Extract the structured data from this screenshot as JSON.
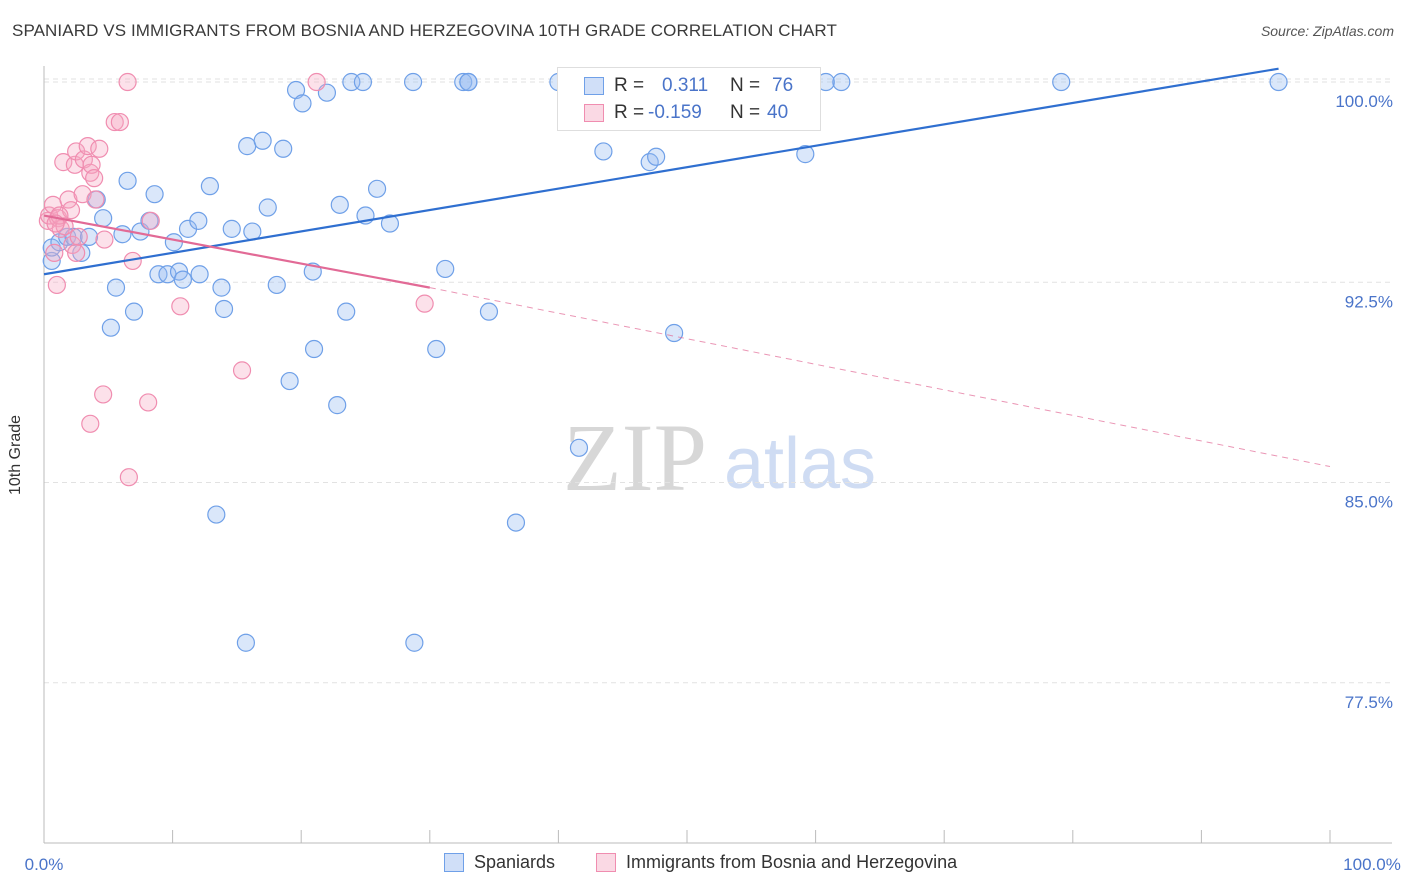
{
  "title": "SPANIARD VS IMMIGRANTS FROM BOSNIA AND HERZEGOVINA 10TH GRADE CORRELATION CHART",
  "source": "Source: ZipAtlas.com",
  "watermark": {
    "zip": "ZIP",
    "atlas": "atlas"
  },
  "legend_top": {
    "rows": [
      {
        "r_label": "R =",
        "r_value": "0.311",
        "n_label": "N =",
        "n_value": "76",
        "color": "#6fa0e8"
      },
      {
        "r_label": "R =",
        "r_value": "-0.159",
        "n_label": "N =",
        "n_value": "40",
        "color": "#f08db0"
      }
    ]
  },
  "chart_data": {
    "type": "scatter",
    "title": "SPANIARD VS IMMIGRANTS FROM BOSNIA AND HERZEGOVINA 10TH GRADE CORRELATION CHART",
    "xlabel": "",
    "ylabel": "10th Grade",
    "xlim": [
      0,
      100
    ],
    "ylim": [
      71.5,
      100.6
    ],
    "x_tick_labels": [
      "0.0%",
      "100.0%"
    ],
    "y_ticks": [
      100.0,
      92.5,
      85.0,
      77.5
    ],
    "y_tick_labels": [
      "100.0%",
      "92.5%",
      "85.0%",
      "77.5%"
    ],
    "grid": true,
    "legend_position": "bottom",
    "series": [
      {
        "name": "Spaniards",
        "color": "#6fa0e8",
        "fill": "rgba(150,185,240,0.35)",
        "trend": {
          "x": [
            0,
            96
          ],
          "y": [
            92.8,
            100.5
          ],
          "dashed_extension": false
        },
        "points": [
          [
            0.6,
            93.3
          ],
          [
            0.6,
            93.8
          ],
          [
            1.2,
            94.0
          ],
          [
            1.8,
            94.2
          ],
          [
            2.3,
            94.2
          ],
          [
            2.9,
            93.6
          ],
          [
            3.5,
            94.2
          ],
          [
            4.1,
            95.6
          ],
          [
            4.6,
            94.9
          ],
          [
            5.2,
            90.8
          ],
          [
            5.6,
            92.3
          ],
          [
            6.1,
            94.3
          ],
          [
            6.5,
            96.3
          ],
          [
            7.0,
            91.4
          ],
          [
            7.5,
            94.4
          ],
          [
            8.2,
            94.8
          ],
          [
            8.6,
            95.8
          ],
          [
            8.9,
            92.8
          ],
          [
            9.6,
            92.8
          ],
          [
            10.1,
            94.0
          ],
          [
            10.5,
            92.9
          ],
          [
            10.8,
            92.6
          ],
          [
            11.2,
            94.5
          ],
          [
            12.0,
            94.8
          ],
          [
            12.1,
            92.8
          ],
          [
            12.9,
            96.1
          ],
          [
            13.8,
            92.3
          ],
          [
            14.0,
            91.5
          ],
          [
            13.4,
            83.8
          ],
          [
            14.6,
            94.5
          ],
          [
            15.8,
            97.6
          ],
          [
            16.2,
            94.4
          ],
          [
            17.0,
            97.8
          ],
          [
            17.4,
            95.3
          ],
          [
            18.1,
            92.4
          ],
          [
            18.6,
            97.5
          ],
          [
            19.1,
            88.8
          ],
          [
            19.6,
            99.7
          ],
          [
            20.1,
            99.2
          ],
          [
            20.9,
            92.9
          ],
          [
            21.0,
            90.0
          ],
          [
            22.0,
            99.6
          ],
          [
            22.8,
            87.9
          ],
          [
            23.0,
            95.4
          ],
          [
            23.5,
            91.4
          ],
          [
            23.9,
            100.0
          ],
          [
            24.8,
            100.0
          ],
          [
            25.0,
            95.0
          ],
          [
            25.9,
            96.0
          ],
          [
            26.9,
            94.7
          ],
          [
            28.7,
            100.0
          ],
          [
            30.5,
            90.0
          ],
          [
            31.2,
            93.0
          ],
          [
            32.6,
            100.0
          ],
          [
            33.0,
            100.0
          ],
          [
            34.6,
            91.4
          ],
          [
            36.7,
            83.5
          ],
          [
            41.6,
            86.3
          ],
          [
            43.5,
            97.4
          ],
          [
            47.1,
            97.0
          ],
          [
            47.6,
            97.2
          ],
          [
            49.0,
            99.0
          ],
          [
            49.5,
            100.0
          ],
          [
            50.0,
            100.0
          ],
          [
            52.5,
            100.0
          ],
          [
            59.2,
            97.3
          ],
          [
            60.8,
            100.0
          ],
          [
            62.0,
            100.0
          ],
          [
            79.1,
            100.0
          ],
          [
            96.0,
            100.0
          ],
          [
            15.7,
            79.0
          ],
          [
            28.8,
            79.0
          ],
          [
            49.0,
            90.6
          ],
          [
            40.0,
            100.0
          ],
          [
            44.0,
            100.0
          ],
          [
            33.0,
            100.0
          ]
        ]
      },
      {
        "name": "Immigrants from Bosnia and Herzegovina",
        "color": "#f08db0",
        "fill": "rgba(245,170,195,0.35)",
        "trend": {
          "x": [
            0,
            30
          ],
          "y": [
            95.0,
            92.3
          ],
          "dashed_extension": true,
          "extension_to": [
            100,
            85.6
          ]
        },
        "points": [
          [
            0.3,
            94.8
          ],
          [
            0.4,
            95.0
          ],
          [
            0.7,
            95.4
          ],
          [
            0.8,
            93.6
          ],
          [
            1.0,
            92.4
          ],
          [
            1.1,
            94.9
          ],
          [
            1.3,
            94.5
          ],
          [
            1.5,
            97.0
          ],
          [
            1.6,
            94.6
          ],
          [
            1.9,
            95.6
          ],
          [
            2.1,
            95.2
          ],
          [
            2.2,
            93.9
          ],
          [
            2.4,
            96.9
          ],
          [
            2.5,
            97.4
          ],
          [
            2.7,
            94.2
          ],
          [
            3.0,
            95.8
          ],
          [
            3.1,
            97.1
          ],
          [
            3.4,
            97.6
          ],
          [
            3.6,
            96.6
          ],
          [
            3.7,
            96.9
          ],
          [
            3.6,
            87.2
          ],
          [
            3.9,
            96.4
          ],
          [
            4.0,
            95.6
          ],
          [
            4.3,
            97.5
          ],
          [
            4.6,
            88.3
          ],
          [
            4.7,
            94.1
          ],
          [
            5.5,
            98.5
          ],
          [
            5.9,
            98.5
          ],
          [
            6.5,
            100.0
          ],
          [
            6.6,
            85.2
          ],
          [
            6.9,
            93.3
          ],
          [
            8.1,
            88.0
          ],
          [
            8.3,
            94.8
          ],
          [
            10.6,
            91.6
          ],
          [
            15.4,
            89.2
          ],
          [
            21.2,
            100.0
          ],
          [
            29.6,
            91.7
          ],
          [
            2.5,
            93.6
          ],
          [
            1.2,
            95.0
          ],
          [
            0.9,
            94.7
          ]
        ]
      }
    ]
  }
}
